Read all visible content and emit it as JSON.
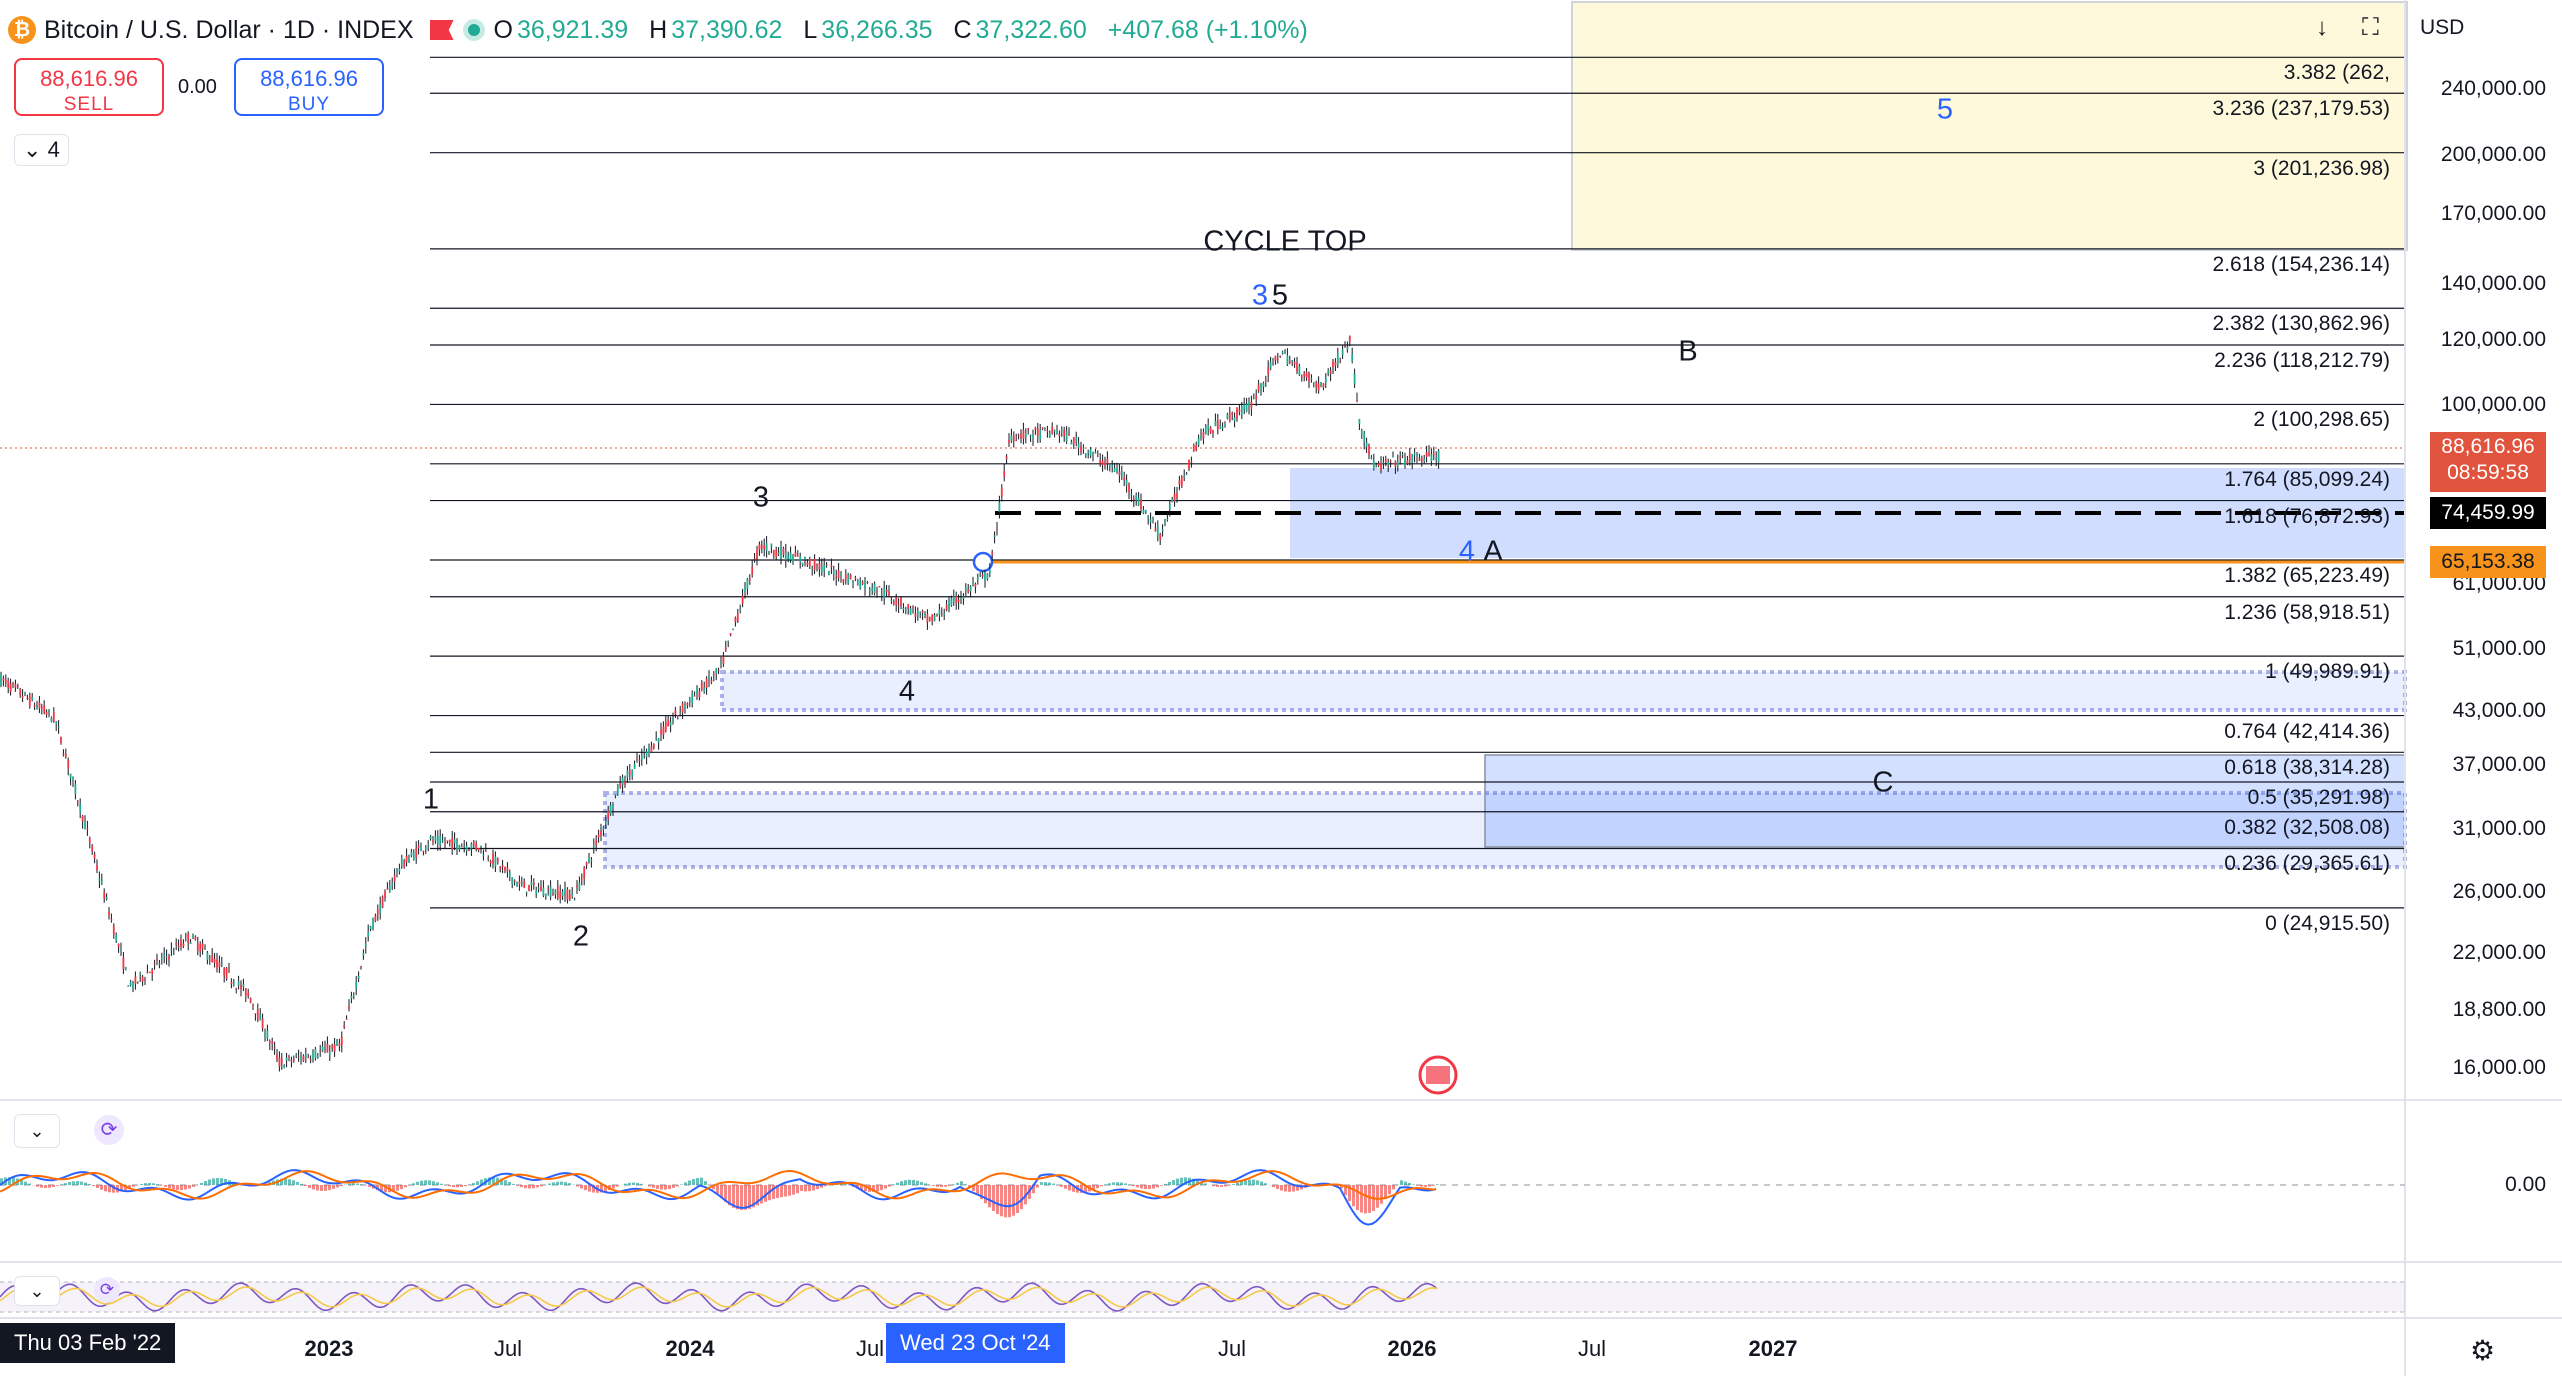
{
  "symbol": {
    "name": "Bitcoin / U.S. Dollar · 1D · INDEX",
    "coin_icon": "bitcoin-icon",
    "ohlc": {
      "o_label": "O",
      "o": "36,921.39",
      "h_label": "H",
      "h": "37,390.62",
      "l_label": "L",
      "l": "36,266.35",
      "c_label": "C",
      "c": "37,322.60",
      "change": "+407.68 (+1.10%)"
    }
  },
  "trade": {
    "sell_price": "88,616.96",
    "sell_label": "SELL",
    "spread": "0.00",
    "buy_price": "88,616.96",
    "buy_label": "BUY"
  },
  "indicator_toggle": "4",
  "currency": "USD",
  "fib_levels": [
    {
      "label": "3.382 (262,",
      "price": 262000
    },
    {
      "label": "3.236 (237,179.53)",
      "price": 237179.53
    },
    {
      "label": "3 (201,236.98)",
      "price": 201236.98
    },
    {
      "label": "2.618 (154,236.14)",
      "price": 154236.14
    },
    {
      "label": "2.382 (130,862.96)",
      "price": 130862.96
    },
    {
      "label": "2.236 (118,212.79)",
      "price": 118212.79
    },
    {
      "label": "2 (100,298.65)",
      "price": 100298.65
    },
    {
      "label": "1.764 (85,099.24)",
      "price": 85099.24
    },
    {
      "label": "1.618 (76,872.93)",
      "price": 76872.93
    },
    {
      "label": "1.382 (65,223.49)",
      "price": 65223.49
    },
    {
      "label": "1.236 (58,918.51)",
      "price": 58918.51
    },
    {
      "label": "1 (49,989.91)",
      "price": 49989.91
    },
    {
      "label": "0.764 (42,414.36)",
      "price": 42414.36
    },
    {
      "label": "0.618 (38,314.28)",
      "price": 38314.28
    },
    {
      "label": "0.5 (35,291.98)",
      "price": 35291.98
    },
    {
      "label": "0.382 (32,508.08)",
      "price": 32508.08
    },
    {
      "label": "0.236 (29,365.61)",
      "price": 29365.61
    },
    {
      "label": "0 (24,915.50)",
      "price": 24915.5
    }
  ],
  "price_axis": [
    {
      "label": "240,000.00",
      "price": 240000
    },
    {
      "label": "200,000.00",
      "price": 200000
    },
    {
      "label": "170,000.00",
      "price": 170000
    },
    {
      "label": "140,000.00",
      "price": 140000
    },
    {
      "label": "120,000.00",
      "price": 120000
    },
    {
      "label": "100,000.00",
      "price": 100000
    },
    {
      "label": "61,000.00",
      "price": 61000
    },
    {
      "label": "51,000.00",
      "price": 51000
    },
    {
      "label": "43,000.00",
      "price": 43000
    },
    {
      "label": "37,000.00",
      "price": 37000
    },
    {
      "label": "31,000.00",
      "price": 31000
    },
    {
      "label": "26,000.00",
      "price": 26000
    },
    {
      "label": "22,000.00",
      "price": 22000
    },
    {
      "label": "18,800.00",
      "price": 18800
    },
    {
      "label": "16,000.00",
      "price": 16000
    }
  ],
  "price_tags": {
    "current_price": "88,616.96",
    "countdown": "08:59:58",
    "current_color": "#e0533d",
    "dashed_level": "74,459.99",
    "dashed_color": "#000000",
    "orange_level": "65,153.38",
    "orange_color": "#f7931a"
  },
  "oscillator": {
    "zero_label": "0.00"
  },
  "wave_labels": {
    "cycle_top": "CYCLE TOP",
    "w1": "1",
    "w2": "2",
    "w3": "3",
    "w4": "4",
    "top_blue": "3",
    "top_black": "5",
    "b": "B",
    "blue4": "4",
    "a": "A",
    "c": "C",
    "blue5": "5"
  },
  "time_axis": {
    "cursor_left": "Thu 03 Feb '22",
    "cursor_mid": "Wed 23 Oct '24",
    "labels": [
      {
        "text": "2023",
        "major": true
      },
      {
        "text": "Jul",
        "major": false
      },
      {
        "text": "2024",
        "major": true
      },
      {
        "text": "Jul",
        "major": false
      },
      {
        "text": "Jul",
        "major": false
      },
      {
        "text": "2026",
        "major": true
      },
      {
        "text": "Jul",
        "major": false
      },
      {
        "text": "2027",
        "major": true
      }
    ]
  },
  "colors": {
    "up": "#22ab94",
    "down": "#f23645",
    "blue_zone": "#2962ff",
    "yellow_zone": "#fff9db"
  }
}
